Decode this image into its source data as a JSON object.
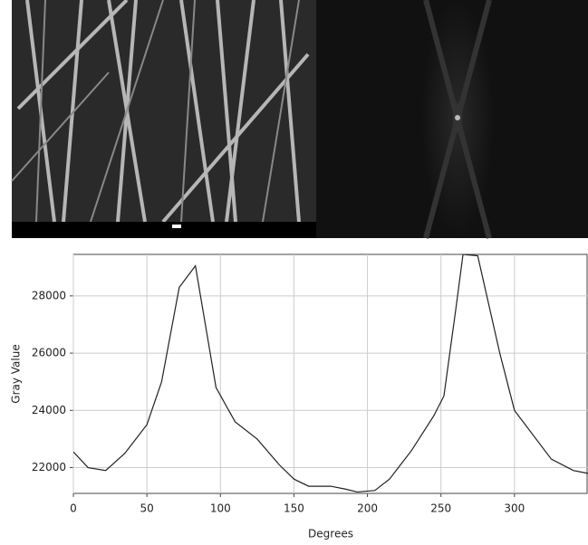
{
  "chart_data": {
    "type": "line",
    "x_label": "Degrees",
    "y_label": "Gray Value",
    "x": [
      0,
      10,
      22,
      35,
      50,
      60,
      72,
      83,
      97,
      110,
      125,
      140,
      150,
      160,
      175,
      185,
      193,
      205,
      215,
      230,
      245,
      252,
      260,
      265,
      275,
      290,
      300,
      325,
      340,
      350
    ],
    "series": [
      {
        "name": "Gray Value",
        "color": "#222222",
        "values": [
          22550,
          22000,
          21900,
          22500,
          23500,
          25000,
          28300,
          29050,
          24800,
          23600,
          23000,
          22100,
          21600,
          21350,
          21350,
          21250,
          21150,
          21200,
          21600,
          22600,
          23800,
          24500,
          27500,
          29450,
          29400,
          26000,
          24000,
          22300,
          21900,
          21800
        ]
      }
    ],
    "xlim": [
      0,
      350
    ],
    "xticks": [
      0,
      50,
      100,
      150,
      200,
      250,
      300
    ],
    "ylim": [
      21100,
      29450
    ],
    "yticks": [
      22000,
      24000,
      26000,
      28000
    ],
    "grid": true
  }
}
